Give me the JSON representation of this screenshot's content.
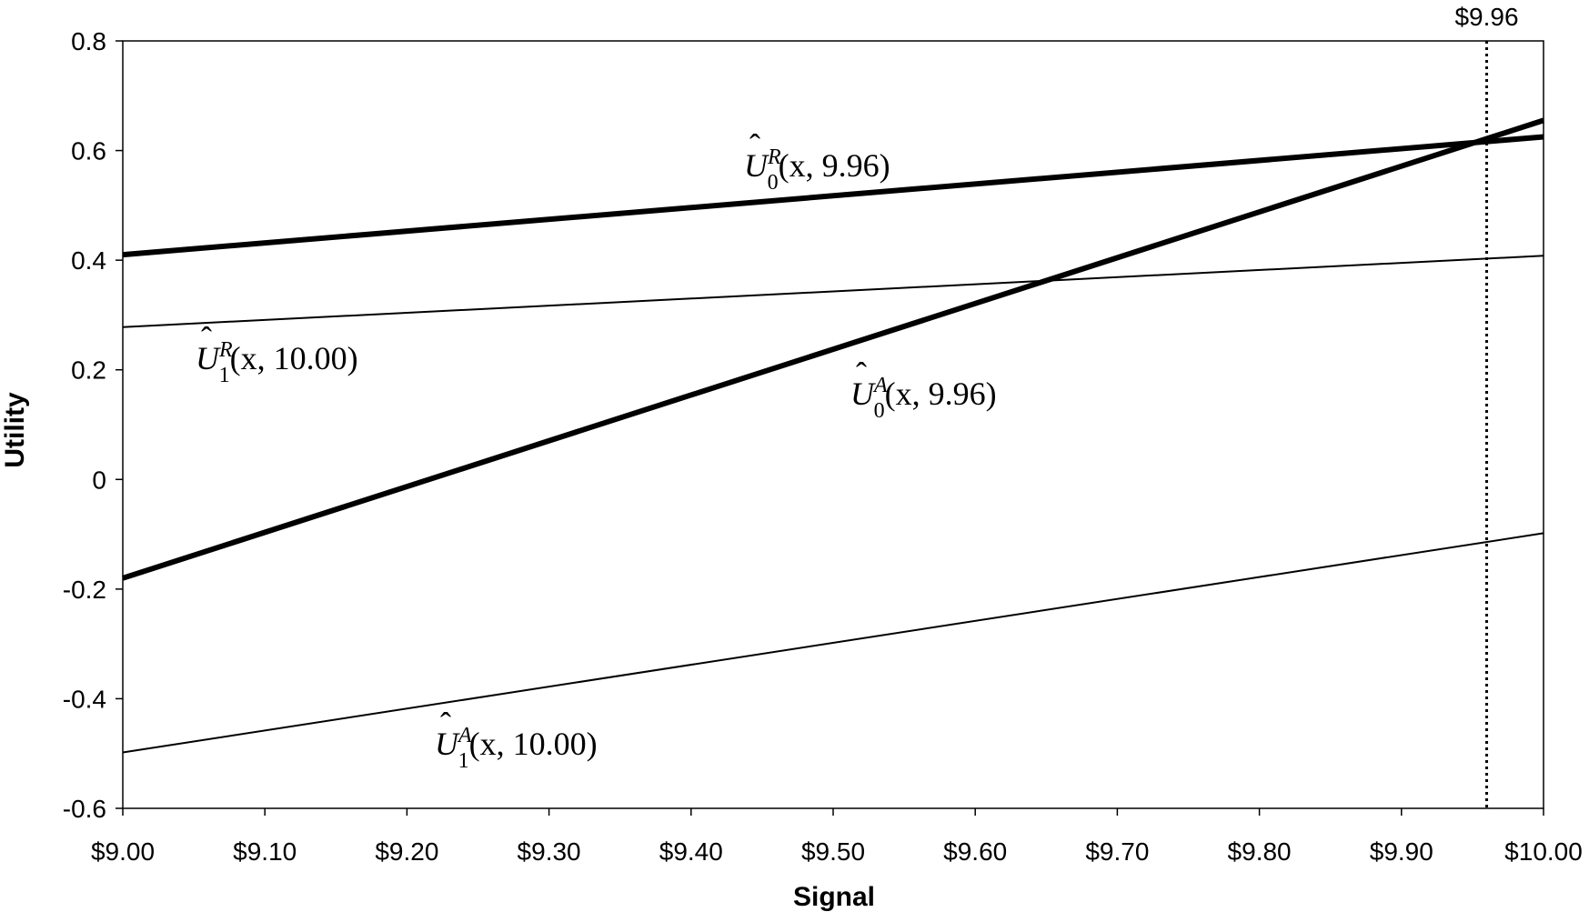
{
  "chart_data": {
    "type": "line",
    "xlabel": "Signal",
    "ylabel": "Utility",
    "xlim": [
      9.0,
      10.0
    ],
    "ylim": [
      -0.6,
      0.8
    ],
    "x_ticks": [
      9.0,
      9.1,
      9.2,
      9.3,
      9.4,
      9.5,
      9.6,
      9.7,
      9.8,
      9.9,
      10.0
    ],
    "x_tick_labels": [
      "$9.00",
      "$9.10",
      "$9.20",
      "$9.30",
      "$9.40",
      "$9.50",
      "$9.60",
      "$9.70",
      "$9.80",
      "$9.90",
      "$10.00"
    ],
    "y_ticks": [
      0.8,
      0.6,
      0.4,
      0.2,
      0,
      -0.2,
      -0.4,
      -0.6
    ],
    "y_tick_labels": [
      "0.8",
      "0.6",
      "0.4",
      "0.2",
      "0",
      "-0.2",
      "-0.4",
      "-0.6"
    ],
    "grid": false,
    "series": [
      {
        "key": "u0r",
        "base": "U",
        "sup": "R",
        "sub": "0",
        "arg": "(x, 9.96)",
        "weight": "thick",
        "x": [
          9.0,
          10.0
        ],
        "y": [
          0.41,
          0.625
        ]
      },
      {
        "key": "u1r",
        "base": "U",
        "sup": "R",
        "sub": "1",
        "arg": "(x, 10.00)",
        "weight": "thin",
        "x": [
          9.0,
          10.0
        ],
        "y": [
          0.278,
          0.408
        ]
      },
      {
        "key": "u0a",
        "base": "U",
        "sup": "A",
        "sub": "0",
        "arg": "(x, 9.96)",
        "weight": "thick",
        "x": [
          9.0,
          10.0
        ],
        "y": [
          -0.18,
          0.655
        ]
      },
      {
        "key": "u1a",
        "base": "U",
        "sup": "A",
        "sub": "1",
        "arg": "(x, 10.00)",
        "weight": "thin",
        "x": [
          9.0,
          10.0
        ],
        "y": [
          -0.498,
          -0.098
        ]
      }
    ],
    "reference_line": {
      "x": 9.96,
      "label": "$9.96",
      "style": "dotted"
    }
  }
}
